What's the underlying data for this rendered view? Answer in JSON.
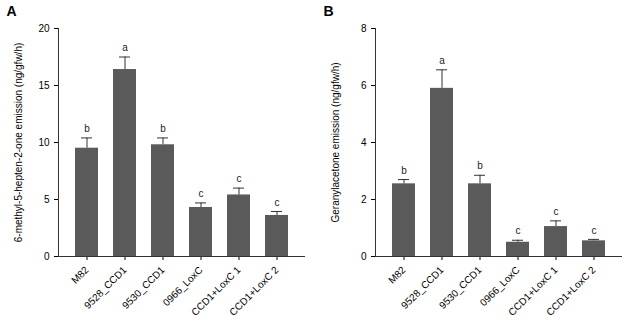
{
  "chart_data": [
    {
      "type": "bar",
      "title": "A",
      "y_label": "6-methyl-5-hepten-2-one emission (ng/gfw/h)",
      "categories": [
        "M82",
        "9528_CCD1",
        "9530_CCD1",
        "0966_LoxC",
        "CCD1+LoxC 1",
        "CCD1+LoxC 2"
      ],
      "values": [
        9.5,
        16.4,
        9.8,
        4.3,
        5.4,
        3.6
      ],
      "errors": [
        0.9,
        1.1,
        0.6,
        0.4,
        0.6,
        0.35
      ],
      "annotations": [
        "b",
        "a",
        "b",
        "c",
        "c",
        "c"
      ],
      "color": "#5a5a5a",
      "ylim": [
        0,
        20
      ],
      "yticks": [
        0,
        5,
        10,
        15,
        20
      ]
    },
    {
      "type": "bar",
      "title": "B",
      "y_label": "Geranylacetone emission (ng/gfw/h)",
      "categories": [
        "M82",
        "9528_CCD1",
        "9530_CCD1",
        "0966_LoxC",
        "CCD1+LoxC 1",
        "CCD1+LoxC 2"
      ],
      "values": [
        2.55,
        5.9,
        2.55,
        0.5,
        1.05,
        0.55
      ],
      "errors": [
        0.15,
        0.65,
        0.3,
        0.07,
        0.2,
        0.05
      ],
      "annotations": [
        "b",
        "a",
        "b",
        "c",
        "c",
        "c"
      ],
      "color": "#5a5a5a",
      "ylim": [
        0,
        8
      ],
      "yticks": [
        0,
        2,
        4,
        6,
        8
      ]
    }
  ]
}
